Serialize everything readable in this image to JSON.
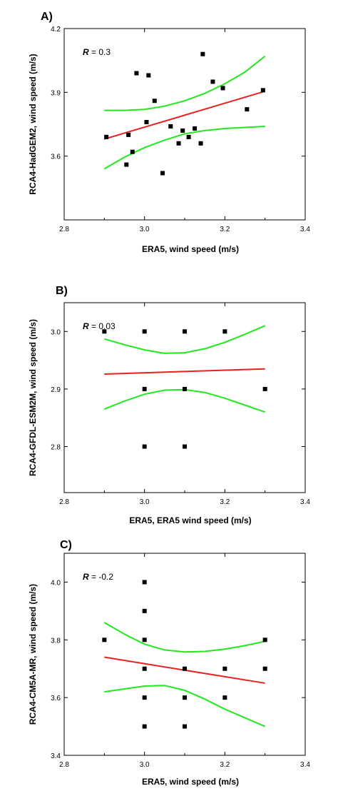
{
  "chart_data": [
    {
      "type": "scatter",
      "panel_label": "A)",
      "r_symbol": "R",
      "r_text": " = 0.3",
      "xlabel": "ERA5, wind speed (m/s)",
      "ylabel": "RCA4-HadGEM2, wind speed (m/s)",
      "xlim": [
        2.8,
        3.4
      ],
      "ylim": [
        3.3,
        4.2
      ],
      "xticks": [
        2.8,
        3.0,
        3.2,
        3.4
      ],
      "xtick_labels": [
        "2.8",
        "3.0",
        "3.2",
        "3.4"
      ],
      "yticks": [
        3.6,
        3.9,
        4.2
      ],
      "ytick_labels": [
        "3.6",
        "3.9",
        "4.2"
      ],
      "points": [
        [
          2.905,
          3.69
        ],
        [
          2.955,
          3.56
        ],
        [
          2.96,
          3.7
        ],
        [
          2.97,
          3.62
        ],
        [
          2.98,
          3.99
        ],
        [
          3.005,
          3.76
        ],
        [
          3.01,
          3.98
        ],
        [
          3.025,
          3.86
        ],
        [
          3.045,
          3.52
        ],
        [
          3.065,
          3.74
        ],
        [
          3.085,
          3.66
        ],
        [
          3.095,
          3.72
        ],
        [
          3.11,
          3.69
        ],
        [
          3.125,
          3.73
        ],
        [
          3.14,
          3.66
        ],
        [
          3.145,
          4.08
        ],
        [
          3.17,
          3.95
        ],
        [
          3.195,
          3.92
        ],
        [
          3.255,
          3.82
        ],
        [
          3.295,
          3.91
        ]
      ],
      "fit_line": {
        "color": "#e8221f",
        "points": [
          [
            2.9,
            3.68
          ],
          [
            3.3,
            3.905
          ]
        ]
      },
      "confidence_band": {
        "color": "#22e81f",
        "upper": [
          [
            2.9,
            3.815
          ],
          [
            2.95,
            3.815
          ],
          [
            3.0,
            3.82
          ],
          [
            3.05,
            3.835
          ],
          [
            3.1,
            3.86
          ],
          [
            3.15,
            3.895
          ],
          [
            3.2,
            3.94
          ],
          [
            3.25,
            3.995
          ],
          [
            3.3,
            4.07
          ]
        ],
        "lower": [
          [
            2.9,
            3.54
          ],
          [
            2.95,
            3.595
          ],
          [
            3.0,
            3.64
          ],
          [
            3.05,
            3.675
          ],
          [
            3.1,
            3.705
          ],
          [
            3.15,
            3.72
          ],
          [
            3.2,
            3.73
          ],
          [
            3.25,
            3.735
          ],
          [
            3.3,
            3.74
          ]
        ]
      }
    },
    {
      "type": "scatter",
      "panel_label": "B)",
      "r_symbol": "R",
      "r_text": " = 0.03",
      "xlabel": "ERA5, ERA5 wind speed (m/s)",
      "ylabel": "RCA4-GFDL-ESM2M, wind speed (m/s)",
      "xlim": [
        2.8,
        3.4
      ],
      "ylim": [
        2.72,
        3.05
      ],
      "xticks": [
        2.8,
        3.0,
        3.2,
        3.4
      ],
      "xtick_labels": [
        "2.8",
        "3.0",
        "3.2",
        "3.4"
      ],
      "yticks": [
        2.8,
        2.9,
        3.0
      ],
      "ytick_labels": [
        "2.8",
        "2.9",
        "3.0"
      ],
      "points": [
        [
          2.9,
          3.0
        ],
        [
          3.0,
          3.0
        ],
        [
          3.1,
          3.0
        ],
        [
          3.2,
          3.0
        ],
        [
          3.0,
          2.9
        ],
        [
          3.1,
          2.9
        ],
        [
          3.3,
          2.9
        ],
        [
          3.0,
          2.8
        ],
        [
          3.1,
          2.8
        ]
      ],
      "fit_line": {
        "color": "#e8221f",
        "points": [
          [
            2.9,
            2.926
          ],
          [
            3.3,
            2.935
          ]
        ]
      },
      "confidence_band": {
        "color": "#22e81f",
        "upper": [
          [
            2.9,
            2.987
          ],
          [
            2.95,
            2.977
          ],
          [
            3.0,
            2.968
          ],
          [
            3.05,
            2.962
          ],
          [
            3.1,
            2.963
          ],
          [
            3.15,
            2.97
          ],
          [
            3.2,
            2.981
          ],
          [
            3.25,
            2.995
          ],
          [
            3.3,
            3.01
          ]
        ],
        "lower": [
          [
            2.9,
            2.865
          ],
          [
            2.95,
            2.879
          ],
          [
            3.0,
            2.891
          ],
          [
            3.05,
            2.898
          ],
          [
            3.1,
            2.899
          ],
          [
            3.15,
            2.894
          ],
          [
            3.2,
            2.884
          ],
          [
            3.25,
            2.872
          ],
          [
            3.3,
            2.86
          ]
        ]
      }
    },
    {
      "type": "scatter",
      "panel_label": "C)",
      "r_symbol": "R",
      "r_text": " = -0.2",
      "xlabel": "ERA5, wind speed (m/s)",
      "ylabel": "RCA4-CM5A-MR, wind speed (m/s)",
      "xlim": [
        2.8,
        3.4
      ],
      "ylim": [
        3.4,
        4.1
      ],
      "xticks": [
        2.8,
        3.0,
        3.2,
        3.4
      ],
      "xtick_labels": [
        "2.8",
        "3.0",
        "3.2",
        "3.4"
      ],
      "yticks": [
        3.4,
        3.6,
        3.8,
        4.0
      ],
      "ytick_labels": [
        "3.4",
        "3.6",
        "3.8",
        "4.0"
      ],
      "points": [
        [
          2.9,
          3.8
        ],
        [
          3.0,
          4.0
        ],
        [
          3.0,
          3.9
        ],
        [
          3.0,
          3.8
        ],
        [
          3.0,
          3.7
        ],
        [
          3.0,
          3.6
        ],
        [
          3.0,
          3.5
        ],
        [
          3.1,
          3.7
        ],
        [
          3.1,
          3.6
        ],
        [
          3.1,
          3.5
        ],
        [
          3.2,
          3.7
        ],
        [
          3.2,
          3.6
        ],
        [
          3.3,
          3.8
        ],
        [
          3.3,
          3.7
        ]
      ],
      "fit_line": {
        "color": "#e8221f",
        "points": [
          [
            2.9,
            3.74
          ],
          [
            3.3,
            3.65
          ]
        ]
      },
      "confidence_band": {
        "color": "#22e81f",
        "upper": [
          [
            2.9,
            3.86
          ],
          [
            2.95,
            3.82
          ],
          [
            3.0,
            3.785
          ],
          [
            3.05,
            3.765
          ],
          [
            3.1,
            3.758
          ],
          [
            3.15,
            3.76
          ],
          [
            3.2,
            3.768
          ],
          [
            3.25,
            3.78
          ],
          [
            3.3,
            3.795
          ]
        ],
        "lower": [
          [
            2.9,
            3.62
          ],
          [
            2.95,
            3.63
          ],
          [
            3.0,
            3.64
          ],
          [
            3.05,
            3.642
          ],
          [
            3.1,
            3.625
          ],
          [
            3.15,
            3.595
          ],
          [
            3.2,
            3.56
          ],
          [
            3.25,
            3.53
          ],
          [
            3.3,
            3.5
          ]
        ]
      }
    }
  ]
}
